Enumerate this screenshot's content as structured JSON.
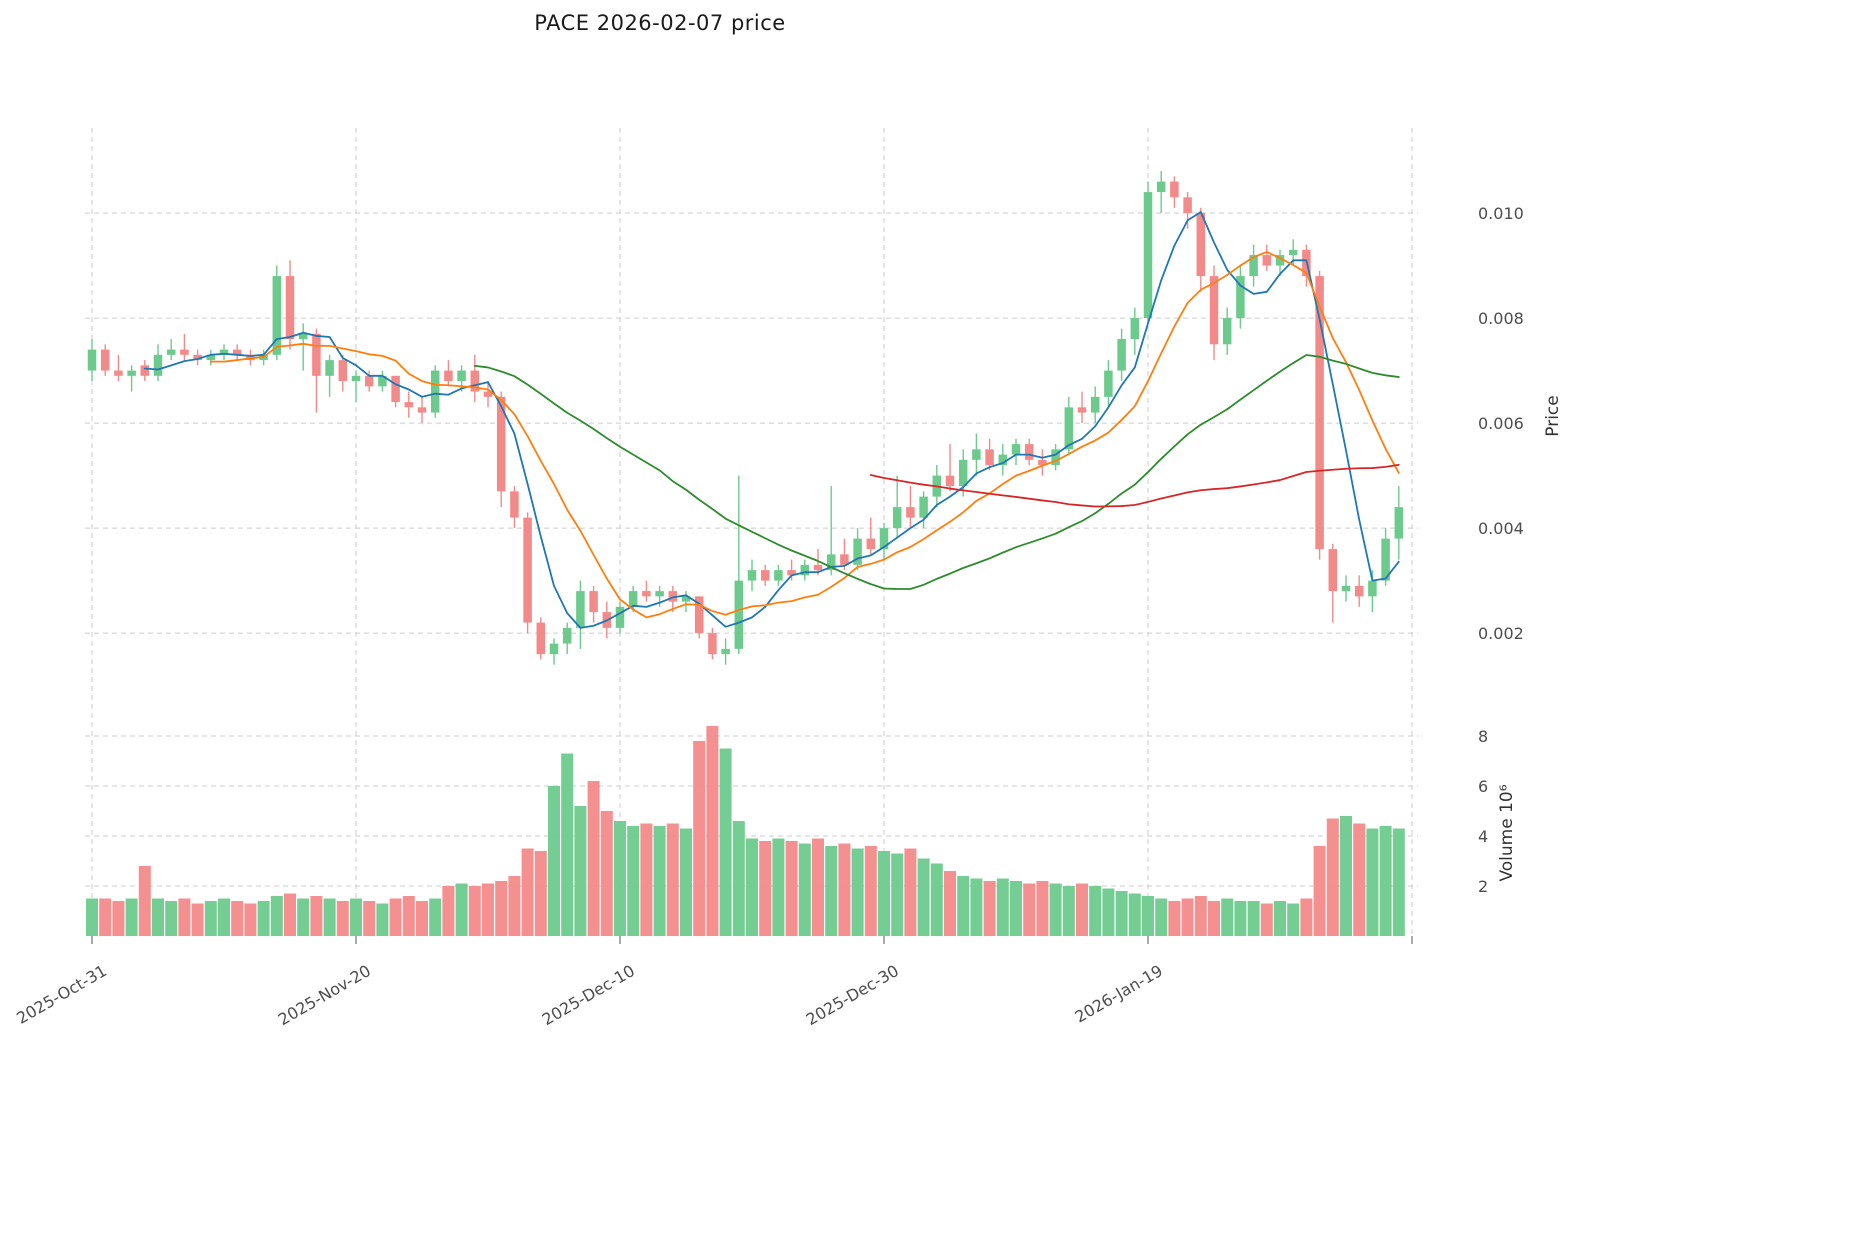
{
  "page": {
    "title": "PACE  2026-02-07  price"
  },
  "chart_data": {
    "type": "candlestick",
    "title": "PACE  2026-02-07  price",
    "price_axis": {
      "label": "Price",
      "tick_labels": [
        "0.002",
        "0.004",
        "0.006",
        "0.008",
        "0.010"
      ],
      "tick_values": [
        0.002,
        0.004,
        0.006,
        0.008,
        0.01
      ],
      "range": [
        0.00065,
        0.01162
      ]
    },
    "volume_axis": {
      "label": "Volume",
      "unit": "10⁶",
      "tick_labels": [
        "2",
        "4",
        "6",
        "8"
      ],
      "tick_values": [
        2,
        4,
        6,
        8
      ],
      "range": [
        0,
        8.72
      ]
    },
    "x_axis": {
      "tick_labels": [
        "2025-Oct-31",
        "2025-Nov-20",
        "2025-Dec-10",
        "2025-Dec-30",
        "2026-Jan-19"
      ],
      "tick_indices": [
        0,
        20,
        40,
        60,
        80
      ]
    },
    "moving_averages": [
      {
        "name": "ma-5",
        "period": 5,
        "color": "#1f77b4"
      },
      {
        "name": "ma-10",
        "period": 10,
        "color": "#ff7f0e"
      },
      {
        "name": "ma-30",
        "period": 30,
        "color": "#2e8b2e"
      },
      {
        "name": "ma-60",
        "period": 60,
        "color": "#d62728"
      }
    ],
    "colors": {
      "up": "#6dca8d",
      "down": "#f38a8a",
      "grid": "#cdcdcd",
      "tick_text": "#4d4d4d"
    },
    "candle_columns": [
      "date",
      "open",
      "high",
      "low",
      "close",
      "volume_millions"
    ],
    "candles": [
      [
        "2025-10-31",
        0.007,
        0.0076,
        0.0068,
        0.0074,
        1.5
      ],
      [
        "2025-11-01",
        0.0074,
        0.0075,
        0.0069,
        0.007,
        1.5
      ],
      [
        "2025-11-02",
        0.007,
        0.0073,
        0.0068,
        0.0069,
        1.4
      ],
      [
        "2025-11-03",
        0.0069,
        0.0071,
        0.0066,
        0.007,
        1.5
      ],
      [
        "2025-11-04",
        0.0071,
        0.0072,
        0.0068,
        0.0069,
        2.8
      ],
      [
        "2025-11-05",
        0.0069,
        0.0075,
        0.0068,
        0.0073,
        1.5
      ],
      [
        "2025-11-06",
        0.0073,
        0.0076,
        0.0072,
        0.0074,
        1.4
      ],
      [
        "2025-11-07",
        0.0074,
        0.0077,
        0.0072,
        0.0073,
        1.5
      ],
      [
        "2025-11-08",
        0.0073,
        0.0074,
        0.0071,
        0.0072,
        1.3
      ],
      [
        "2025-11-09",
        0.0072,
        0.0074,
        0.0071,
        0.0073,
        1.4
      ],
      [
        "2025-11-10",
        0.0073,
        0.0075,
        0.0072,
        0.0074,
        1.5
      ],
      [
        "2025-11-11",
        0.0074,
        0.0075,
        0.0072,
        0.0073,
        1.4
      ],
      [
        "2025-11-12",
        0.0073,
        0.0074,
        0.0071,
        0.0072,
        1.3
      ],
      [
        "2025-11-13",
        0.0072,
        0.0074,
        0.0071,
        0.0073,
        1.4
      ],
      [
        "2025-11-14",
        0.0073,
        0.009,
        0.0072,
        0.0088,
        1.6
      ],
      [
        "2025-11-15",
        0.0088,
        0.0091,
        0.0074,
        0.0076,
        1.7
      ],
      [
        "2025-11-16",
        0.0076,
        0.0079,
        0.007,
        0.0077,
        1.5
      ],
      [
        "2025-11-17",
        0.0077,
        0.0078,
        0.0062,
        0.0069,
        1.6
      ],
      [
        "2025-11-18",
        0.0069,
        0.0073,
        0.0065,
        0.0072,
        1.5
      ],
      [
        "2025-11-19",
        0.0072,
        0.0073,
        0.0066,
        0.0068,
        1.4
      ],
      [
        "2025-11-20",
        0.0068,
        0.007,
        0.0064,
        0.0069,
        1.5
      ],
      [
        "2025-11-21",
        0.0069,
        0.007,
        0.0066,
        0.0067,
        1.4
      ],
      [
        "2025-11-22",
        0.0067,
        0.007,
        0.0066,
        0.0069,
        1.3
      ],
      [
        "2025-11-23",
        0.0069,
        0.0069,
        0.0063,
        0.0064,
        1.5
      ],
      [
        "2025-11-24",
        0.0064,
        0.0066,
        0.0061,
        0.0063,
        1.6
      ],
      [
        "2025-11-25",
        0.0063,
        0.0065,
        0.006,
        0.0062,
        1.4
      ],
      [
        "2025-11-26",
        0.0062,
        0.0071,
        0.0061,
        0.007,
        1.5
      ],
      [
        "2025-11-27",
        0.007,
        0.0072,
        0.0067,
        0.0068,
        2.0
      ],
      [
        "2025-11-28",
        0.0068,
        0.0071,
        0.0066,
        0.007,
        2.1
      ],
      [
        "2025-11-29",
        0.007,
        0.0073,
        0.0064,
        0.0066,
        2.0
      ],
      [
        "2025-11-30",
        0.0066,
        0.0068,
        0.0063,
        0.0065,
        2.1
      ],
      [
        "2025-12-01",
        0.0065,
        0.0066,
        0.0044,
        0.0047,
        2.2
      ],
      [
        "2025-12-02",
        0.0047,
        0.0048,
        0.004,
        0.0042,
        2.4
      ],
      [
        "2025-12-03",
        0.0042,
        0.0043,
        0.002,
        0.0022,
        3.5
      ],
      [
        "2025-12-04",
        0.0022,
        0.0023,
        0.0015,
        0.0016,
        3.4
      ],
      [
        "2025-12-05",
        0.0016,
        0.0019,
        0.0014,
        0.0018,
        6.0
      ],
      [
        "2025-12-06",
        0.0018,
        0.0022,
        0.0016,
        0.0021,
        7.3
      ],
      [
        "2025-12-07",
        0.0021,
        0.003,
        0.0017,
        0.0028,
        5.2
      ],
      [
        "2025-12-08",
        0.0028,
        0.0029,
        0.0022,
        0.0024,
        6.2
      ],
      [
        "2025-12-09",
        0.0024,
        0.0026,
        0.0019,
        0.0021,
        5.0
      ],
      [
        "2025-12-10",
        0.0021,
        0.0026,
        0.002,
        0.0025,
        4.6
      ],
      [
        "2025-12-11",
        0.0025,
        0.0029,
        0.0024,
        0.0028,
        4.4
      ],
      [
        "2025-12-12",
        0.0028,
        0.003,
        0.0026,
        0.0027,
        4.5
      ],
      [
        "2025-12-13",
        0.0027,
        0.0029,
        0.0025,
        0.0028,
        4.4
      ],
      [
        "2025-12-14",
        0.0028,
        0.0029,
        0.0024,
        0.0026,
        4.5
      ],
      [
        "2025-12-15",
        0.0026,
        0.0028,
        0.0024,
        0.0027,
        4.3
      ],
      [
        "2025-12-16",
        0.0027,
        0.0027,
        0.0019,
        0.002,
        7.8
      ],
      [
        "2025-12-17",
        0.002,
        0.0021,
        0.0015,
        0.0016,
        8.4
      ],
      [
        "2025-12-18",
        0.0016,
        0.0019,
        0.0014,
        0.0017,
        7.5
      ],
      [
        "2025-12-19",
        0.0017,
        0.005,
        0.0016,
        0.003,
        4.6
      ],
      [
        "2025-12-20",
        0.003,
        0.0034,
        0.0028,
        0.0032,
        3.9
      ],
      [
        "2025-12-21",
        0.0032,
        0.0033,
        0.0029,
        0.003,
        3.8
      ],
      [
        "2025-12-22",
        0.003,
        0.0033,
        0.0029,
        0.0032,
        3.9
      ],
      [
        "2025-12-23",
        0.0032,
        0.0034,
        0.003,
        0.0031,
        3.8
      ],
      [
        "2025-12-24",
        0.0031,
        0.0034,
        0.003,
        0.0033,
        3.7
      ],
      [
        "2025-12-25",
        0.0033,
        0.0036,
        0.0031,
        0.0032,
        3.9
      ],
      [
        "2025-12-26",
        0.0032,
        0.0048,
        0.0031,
        0.0035,
        3.6
      ],
      [
        "2025-12-27",
        0.0035,
        0.0038,
        0.0032,
        0.0033,
        3.7
      ],
      [
        "2025-12-28",
        0.0033,
        0.004,
        0.0032,
        0.0038,
        3.5
      ],
      [
        "2025-12-29",
        0.0038,
        0.0042,
        0.0035,
        0.0036,
        3.6
      ],
      [
        "2025-12-30",
        0.0036,
        0.0041,
        0.0034,
        0.004,
        3.4
      ],
      [
        "2025-12-31",
        0.004,
        0.005,
        0.0038,
        0.0044,
        3.3
      ],
      [
        "2026-01-01",
        0.0044,
        0.0048,
        0.004,
        0.0042,
        3.5
      ],
      [
        "2026-01-02",
        0.0042,
        0.0047,
        0.004,
        0.0046,
        3.1
      ],
      [
        "2026-01-03",
        0.0046,
        0.0052,
        0.0044,
        0.005,
        2.9
      ],
      [
        "2026-01-04",
        0.005,
        0.0056,
        0.0047,
        0.0048,
        2.6
      ],
      [
        "2026-01-05",
        0.0048,
        0.0055,
        0.0046,
        0.0053,
        2.4
      ],
      [
        "2026-01-06",
        0.0053,
        0.0058,
        0.005,
        0.0055,
        2.3
      ],
      [
        "2026-01-07",
        0.0055,
        0.0057,
        0.0051,
        0.0052,
        2.2
      ],
      [
        "2026-01-08",
        0.0052,
        0.0056,
        0.005,
        0.0054,
        2.3
      ],
      [
        "2026-01-09",
        0.0054,
        0.0057,
        0.0052,
        0.0056,
        2.2
      ],
      [
        "2026-01-10",
        0.0056,
        0.0057,
        0.0052,
        0.0053,
        2.1
      ],
      [
        "2026-01-11",
        0.0053,
        0.0055,
        0.005,
        0.0052,
        2.2
      ],
      [
        "2026-01-12",
        0.0052,
        0.0056,
        0.0051,
        0.0055,
        2.1
      ],
      [
        "2026-01-13",
        0.0055,
        0.0065,
        0.0054,
        0.0063,
        2.0
      ],
      [
        "2026-01-14",
        0.0063,
        0.0066,
        0.006,
        0.0062,
        2.1
      ],
      [
        "2026-01-15",
        0.0062,
        0.0067,
        0.006,
        0.0065,
        2.0
      ],
      [
        "2026-01-16",
        0.0065,
        0.0072,
        0.0063,
        0.007,
        1.9
      ],
      [
        "2026-01-17",
        0.007,
        0.0078,
        0.0068,
        0.0076,
        1.8
      ],
      [
        "2026-01-18",
        0.0076,
        0.0082,
        0.0073,
        0.008,
        1.7
      ],
      [
        "2026-01-19",
        0.008,
        0.0106,
        0.0079,
        0.0104,
        1.6
      ],
      [
        "2026-01-20",
        0.0104,
        0.0108,
        0.01,
        0.0106,
        1.5
      ],
      [
        "2026-01-21",
        0.0106,
        0.0107,
        0.0101,
        0.0103,
        1.4
      ],
      [
        "2026-01-22",
        0.0103,
        0.0104,
        0.0097,
        0.01,
        1.5
      ],
      [
        "2026-01-23",
        0.01,
        0.0101,
        0.0085,
        0.0088,
        1.6
      ],
      [
        "2026-01-24",
        0.0088,
        0.009,
        0.0072,
        0.0075,
        1.4
      ],
      [
        "2026-01-25",
        0.0075,
        0.0082,
        0.0073,
        0.008,
        1.5
      ],
      [
        "2026-01-26",
        0.008,
        0.009,
        0.0078,
        0.0088,
        1.4
      ],
      [
        "2026-01-27",
        0.0088,
        0.0094,
        0.0086,
        0.0092,
        1.4
      ],
      [
        "2026-01-28",
        0.0092,
        0.0094,
        0.0089,
        0.009,
        1.3
      ],
      [
        "2026-01-29",
        0.009,
        0.0093,
        0.0088,
        0.0092,
        1.4
      ],
      [
        "2026-01-30",
        0.0092,
        0.0095,
        0.009,
        0.0093,
        1.3
      ],
      [
        "2026-01-31",
        0.0093,
        0.0094,
        0.0086,
        0.0088,
        1.5
      ],
      [
        "2026-02-01",
        0.0088,
        0.0089,
        0.0034,
        0.0036,
        3.6
      ],
      [
        "2026-02-02",
        0.0036,
        0.0037,
        0.0022,
        0.0028,
        4.7
      ],
      [
        "2026-02-03",
        0.0028,
        0.0031,
        0.0026,
        0.0029,
        4.8
      ],
      [
        "2026-02-04",
        0.0029,
        0.0031,
        0.0025,
        0.0027,
        4.5
      ],
      [
        "2026-02-05",
        0.0027,
        0.0032,
        0.0024,
        0.003,
        4.3
      ],
      [
        "2026-02-06",
        0.003,
        0.004,
        0.0029,
        0.0038,
        4.4
      ],
      [
        "2026-02-07",
        0.0038,
        0.0048,
        0.0034,
        0.0044,
        4.3
      ]
    ]
  }
}
